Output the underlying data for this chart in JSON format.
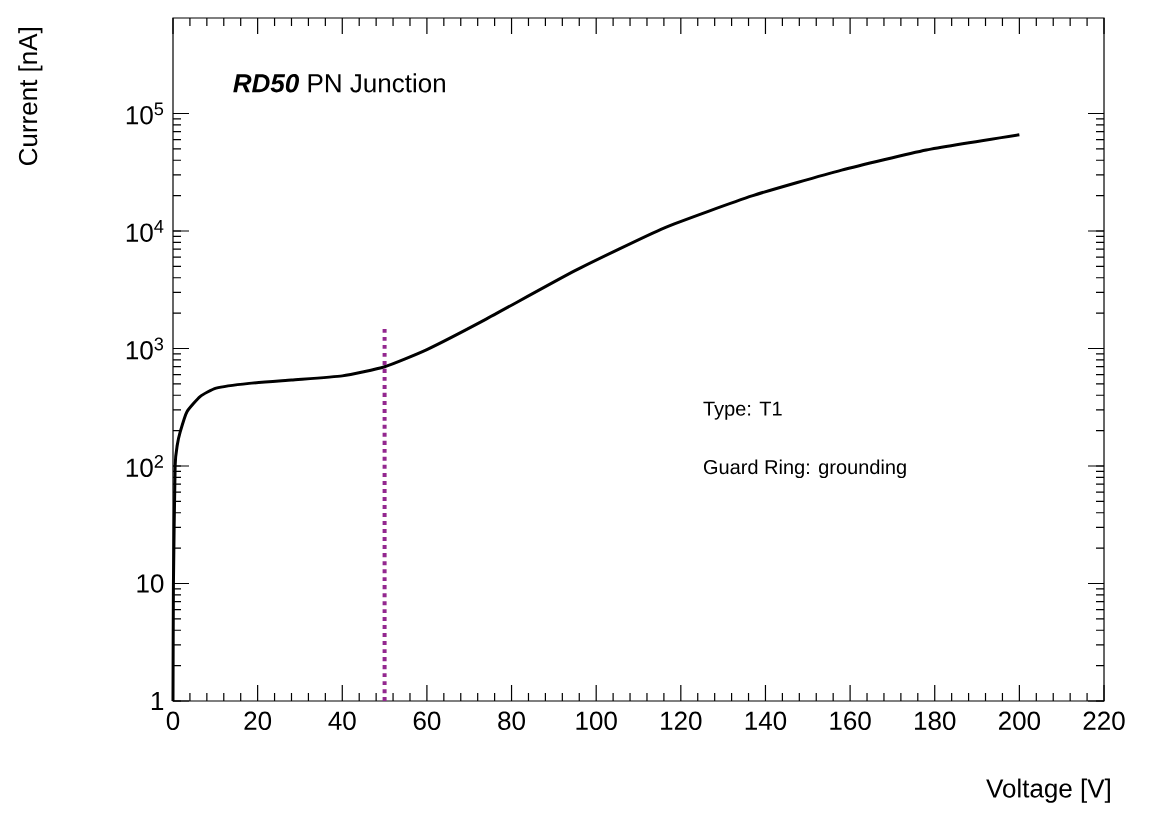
{
  "chart_data": {
    "type": "line",
    "title": "**RD50** PN Junction",
    "xlabel": "Voltage [V]",
    "ylabel": "Current [nA]",
    "annotations": [
      "Type: T1",
      "Guard Ring: grounding"
    ],
    "log": "y",
    "grid": false,
    "marker": "none",
    "xlim": [
      0,
      220
    ],
    "xticks": [
      0,
      20,
      40,
      60,
      80,
      100,
      120,
      140,
      160,
      180,
      200,
      220
    ],
    "ylim": [
      1,
      650000
    ],
    "yticks": [
      1,
      10,
      {
        "value": 100,
        "label": "10$^{2}$"
      },
      {
        "value": 1000,
        "label": "10$^{3}$"
      },
      {
        "value": 10000,
        "label": "10$^{4}$"
      },
      {
        "value": 100000,
        "label": "10$^{5}$"
      }
    ],
    "series": [
      {
        "color": "#000000",
        "line_style": "solid",
        "x": [
          0,
          0.1,
          0.5,
          1.0,
          1.7,
          3.3,
          6.4,
          10.2,
          18,
          28,
          40,
          50,
          60,
          74,
          95,
          116,
          137,
          158,
          178,
          200
        ],
        "values": [
          1,
          10,
          100,
          150,
          195,
          290,
          390,
          460,
          505,
          540,
          585,
          700,
          980,
          1780,
          4600,
          10600,
          20000,
          33000,
          49000,
          66000
        ]
      },
      {
        "color": "#93278f",
        "line_style": "dotted",
        "x": [
          50,
          50
        ],
        "values": [
          1,
          1500
        ]
      }
    ]
  }
}
